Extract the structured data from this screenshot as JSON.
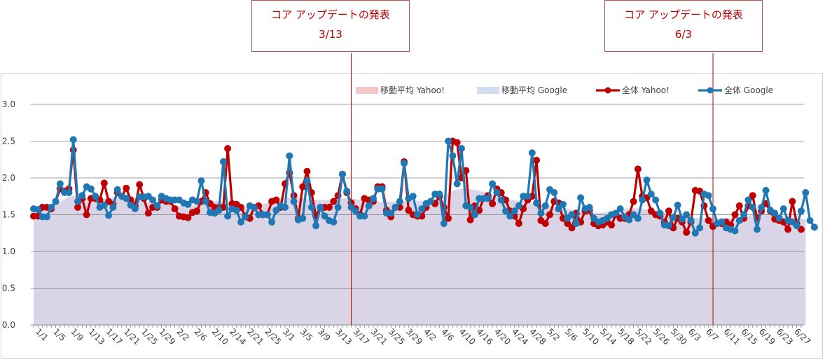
{
  "annotations": [
    {
      "title": "コア アップデートの発表",
      "date": "3/13",
      "x_index": 72
    },
    {
      "title": "コア アップデートの発表",
      "date": "6/3",
      "x_index": 154
    }
  ],
  "colors": {
    "yahoo": "#c00000",
    "google": "#1f77b4",
    "ma_yahoo": "#f4c7c7",
    "ma_google": "#cfdff0",
    "annotation": "#c00000"
  },
  "chart_data": {
    "type": "line",
    "title": "",
    "xlabel": "",
    "ylabel": "",
    "ylim": [
      0,
      3.0
    ],
    "yticks": [
      "0.0",
      "0.5",
      "1.0",
      "1.5",
      "2.0",
      "2.5",
      "3.0"
    ],
    "grid": true,
    "legend_position": "top-right",
    "x_tick_labels": [
      "1/1",
      "1/5",
      "1/9",
      "1/13",
      "1/17",
      "1/21",
      "1/25",
      "1/29",
      "2/2",
      "2/6",
      "2/10",
      "2/14",
      "2/21",
      "2/25",
      "3/1",
      "3/5",
      "3/9",
      "3/13",
      "3/17",
      "3/21",
      "3/25",
      "3/29",
      "4/2",
      "4/6",
      "4/10",
      "4/16",
      "4/20",
      "4/24",
      "4/28",
      "5/2",
      "5/6",
      "5/10",
      "5/14",
      "5/18",
      "5/22",
      "5/26",
      "5/30",
      "6/3",
      "6/7",
      "6/11",
      "6/15",
      "6/19",
      "6/23",
      "6/27"
    ],
    "x_tick_every": 4,
    "series": [
      {
        "name": "移動平均 Yahoo!",
        "kind": "area",
        "values": [
          1.55,
          1.55,
          1.56,
          1.57,
          1.6,
          1.63,
          1.66,
          1.7,
          1.74,
          1.75,
          1.74,
          1.73,
          1.72,
          1.71,
          1.7,
          1.7,
          1.71,
          1.72,
          1.73,
          1.73,
          1.72,
          1.71,
          1.7,
          1.69,
          1.68,
          1.68,
          1.67,
          1.67,
          1.66,
          1.65,
          1.64,
          1.63,
          1.63,
          1.62,
          1.62,
          1.62,
          1.63,
          1.64,
          1.65,
          1.67,
          1.68,
          1.69,
          1.69,
          1.68,
          1.66,
          1.64,
          1.62,
          1.61,
          1.6,
          1.59,
          1.6,
          1.62,
          1.64,
          1.66,
          1.68,
          1.7,
          1.72,
          1.73,
          1.74,
          1.74,
          1.74,
          1.73,
          1.72,
          1.71,
          1.7,
          1.7,
          1.7,
          1.7,
          1.71,
          1.72,
          1.72,
          1.72,
          1.72,
          1.71,
          1.7,
          1.69,
          1.68,
          1.67,
          1.67,
          1.67,
          1.67,
          1.67,
          1.68,
          1.68,
          1.68,
          1.68,
          1.68,
          1.68,
          1.68,
          1.69,
          1.7,
          1.71,
          1.73,
          1.76,
          1.79,
          1.82,
          1.84,
          1.85,
          1.85,
          1.84,
          1.83,
          1.82,
          1.81,
          1.79,
          1.77,
          1.75,
          1.73,
          1.71,
          1.7,
          1.69,
          1.68,
          1.67,
          1.66,
          1.65,
          1.64,
          1.63,
          1.62,
          1.61,
          1.6,
          1.59,
          1.58,
          1.57,
          1.56,
          1.55,
          1.54,
          1.53,
          1.52,
          1.52,
          1.52,
          1.52,
          1.53,
          1.54,
          1.55,
          1.56,
          1.57,
          1.58,
          1.58,
          1.58,
          1.58,
          1.57,
          1.56,
          1.55,
          1.54,
          1.53,
          1.52,
          1.51,
          1.5,
          1.49,
          1.48,
          1.47,
          1.46,
          1.45,
          1.45,
          1.45,
          1.45,
          1.45,
          1.45,
          1.45,
          1.45,
          1.45,
          1.46,
          1.47,
          1.48,
          1.49,
          1.5,
          1.51,
          1.51,
          1.51,
          1.5,
          1.49,
          1.48,
          1.47,
          1.46,
          1.45,
          1.44,
          1.43
        ]
      },
      {
        "name": "移動平均 Google",
        "kind": "area",
        "values": [
          1.58,
          1.58,
          1.59,
          1.6,
          1.62,
          1.65,
          1.68,
          1.72,
          1.75,
          1.76,
          1.75,
          1.74,
          1.73,
          1.72,
          1.71,
          1.71,
          1.72,
          1.72,
          1.73,
          1.73,
          1.72,
          1.71,
          1.7,
          1.69,
          1.69,
          1.68,
          1.68,
          1.67,
          1.67,
          1.66,
          1.65,
          1.64,
          1.63,
          1.62,
          1.62,
          1.62,
          1.62,
          1.63,
          1.64,
          1.66,
          1.67,
          1.68,
          1.68,
          1.67,
          1.65,
          1.63,
          1.61,
          1.6,
          1.59,
          1.59,
          1.6,
          1.62,
          1.64,
          1.66,
          1.68,
          1.7,
          1.71,
          1.72,
          1.73,
          1.73,
          1.73,
          1.72,
          1.71,
          1.7,
          1.7,
          1.7,
          1.7,
          1.7,
          1.71,
          1.72,
          1.72,
          1.72,
          1.72,
          1.71,
          1.7,
          1.69,
          1.68,
          1.68,
          1.68,
          1.68,
          1.68,
          1.68,
          1.68,
          1.69,
          1.69,
          1.69,
          1.69,
          1.69,
          1.69,
          1.7,
          1.71,
          1.72,
          1.74,
          1.77,
          1.8,
          1.83,
          1.85,
          1.86,
          1.86,
          1.85,
          1.84,
          1.83,
          1.81,
          1.79,
          1.77,
          1.75,
          1.73,
          1.72,
          1.71,
          1.7,
          1.69,
          1.68,
          1.67,
          1.66,
          1.65,
          1.64,
          1.63,
          1.62,
          1.61,
          1.6,
          1.59,
          1.58,
          1.57,
          1.56,
          1.55,
          1.54,
          1.53,
          1.53,
          1.53,
          1.53,
          1.54,
          1.55,
          1.56,
          1.57,
          1.58,
          1.59,
          1.59,
          1.59,
          1.58,
          1.57,
          1.56,
          1.55,
          1.54,
          1.53,
          1.52,
          1.51,
          1.5,
          1.49,
          1.48,
          1.47,
          1.46,
          1.46,
          1.46,
          1.46,
          1.46,
          1.46,
          1.46,
          1.46,
          1.46,
          1.46,
          1.47,
          1.48,
          1.49,
          1.5,
          1.51,
          1.52,
          1.52,
          1.52,
          1.51,
          1.5,
          1.49,
          1.48,
          1.47,
          1.46,
          1.45,
          1.44
        ]
      },
      {
        "name": "全体 Yahoo!",
        "kind": "line",
        "values": [
          1.48,
          1.48,
          1.6,
          1.6,
          1.58,
          1.68,
          1.85,
          1.82,
          1.85,
          2.38,
          1.6,
          1.72,
          1.5,
          1.72,
          1.72,
          1.7,
          1.93,
          1.68,
          1.64,
          1.8,
          1.75,
          1.86,
          1.7,
          1.62,
          1.91,
          1.72,
          1.52,
          1.6,
          1.6,
          1.7,
          1.68,
          1.68,
          1.58,
          1.48,
          1.47,
          1.46,
          1.53,
          1.55,
          1.68,
          1.8,
          1.65,
          1.6,
          1.6,
          1.6,
          2.4,
          1.65,
          1.64,
          1.6,
          1.48,
          1.45,
          1.6,
          1.62,
          1.5,
          1.5,
          1.68,
          1.7,
          1.6,
          1.92,
          2.07,
          1.76,
          1.45,
          1.88,
          2.09,
          1.8,
          1.48,
          1.6,
          1.6,
          1.6,
          1.68,
          1.76,
          2.05,
          1.8,
          1.66,
          1.58,
          1.5,
          1.72,
          1.7,
          1.68,
          1.88,
          1.88,
          1.56,
          1.47,
          1.6,
          1.6,
          2.22,
          1.56,
          1.5,
          1.48,
          1.48,
          1.6,
          1.68,
          1.65,
          1.75,
          1.6,
          1.45,
          2.5,
          2.48,
          2.0,
          2.1,
          1.43,
          1.62,
          1.56,
          1.72,
          1.76,
          1.65,
          1.85,
          1.8,
          1.7,
          1.55,
          1.48,
          1.38,
          1.58,
          1.7,
          1.75,
          2.24,
          1.42,
          1.38,
          1.5,
          1.68,
          1.66,
          1.45,
          1.38,
          1.32,
          1.52,
          1.4,
          1.55,
          1.56,
          1.38,
          1.35,
          1.36,
          1.4,
          1.36,
          1.5,
          1.45,
          1.45,
          1.5,
          1.68,
          2.12,
          1.75,
          1.73,
          1.55,
          1.5,
          1.48,
          1.4,
          1.55,
          1.32,
          1.45,
          1.4,
          1.26,
          1.4,
          1.83,
          1.82,
          1.62,
          1.42,
          1.34,
          1.38,
          1.38,
          1.4,
          1.36,
          1.5,
          1.62,
          1.45,
          1.62,
          1.76,
          1.45,
          1.55,
          1.65,
          1.55,
          1.44,
          1.42,
          1.4,
          1.3,
          1.68,
          1.38,
          1.3
        ]
      },
      {
        "name": "全体 Google",
        "kind": "line",
        "values": [
          1.58,
          1.57,
          1.47,
          1.47,
          1.6,
          1.68,
          1.92,
          1.8,
          1.8,
          2.52,
          1.68,
          1.76,
          1.88,
          1.85,
          1.75,
          1.6,
          1.63,
          1.49,
          1.6,
          1.84,
          1.75,
          1.72,
          1.63,
          1.58,
          1.74,
          1.74,
          1.75,
          1.7,
          1.62,
          1.75,
          1.72,
          1.7,
          1.7,
          1.7,
          1.66,
          1.64,
          1.7,
          1.68,
          1.96,
          1.68,
          1.53,
          1.52,
          1.56,
          2.22,
          1.48,
          1.58,
          1.56,
          1.4,
          1.47,
          1.62,
          1.6,
          1.5,
          1.5,
          1.5,
          1.4,
          1.56,
          1.62,
          1.6,
          2.3,
          1.68,
          1.43,
          1.45,
          1.96,
          1.6,
          1.35,
          1.6,
          1.48,
          1.42,
          1.4,
          1.6,
          2.05,
          1.82,
          1.6,
          1.55,
          1.48,
          1.48,
          1.62,
          1.72,
          1.85,
          1.85,
          1.52,
          1.52,
          1.6,
          1.68,
          2.2,
          1.72,
          1.75,
          1.5,
          1.58,
          1.65,
          1.68,
          1.78,
          1.78,
          1.38,
          2.5,
          2.3,
          1.92,
          2.4,
          1.62,
          1.6,
          1.5,
          1.72,
          1.72,
          1.72,
          1.92,
          1.8,
          1.7,
          1.55,
          1.48,
          1.55,
          1.62,
          1.75,
          1.75,
          2.34,
          1.66,
          1.52,
          1.62,
          1.84,
          1.8,
          1.58,
          1.64,
          1.45,
          1.5,
          1.38,
          1.73,
          1.58,
          1.6,
          1.45,
          1.4,
          1.42,
          1.45,
          1.5,
          1.52,
          1.58,
          1.47,
          1.43,
          1.5,
          1.45,
          1.7,
          1.97,
          1.78,
          1.7,
          1.52,
          1.36,
          1.35,
          1.46,
          1.63,
          1.44,
          1.5,
          1.42,
          1.25,
          1.32,
          1.78,
          1.76,
          1.58,
          1.38,
          1.4,
          1.32,
          1.3,
          1.28,
          1.42,
          1.5,
          1.7,
          1.6,
          1.3,
          1.6,
          1.83,
          1.56,
          1.52,
          1.45,
          1.58,
          1.42,
          1.4,
          1.35,
          1.55,
          1.8,
          1.42,
          1.33
        ]
      }
    ]
  }
}
